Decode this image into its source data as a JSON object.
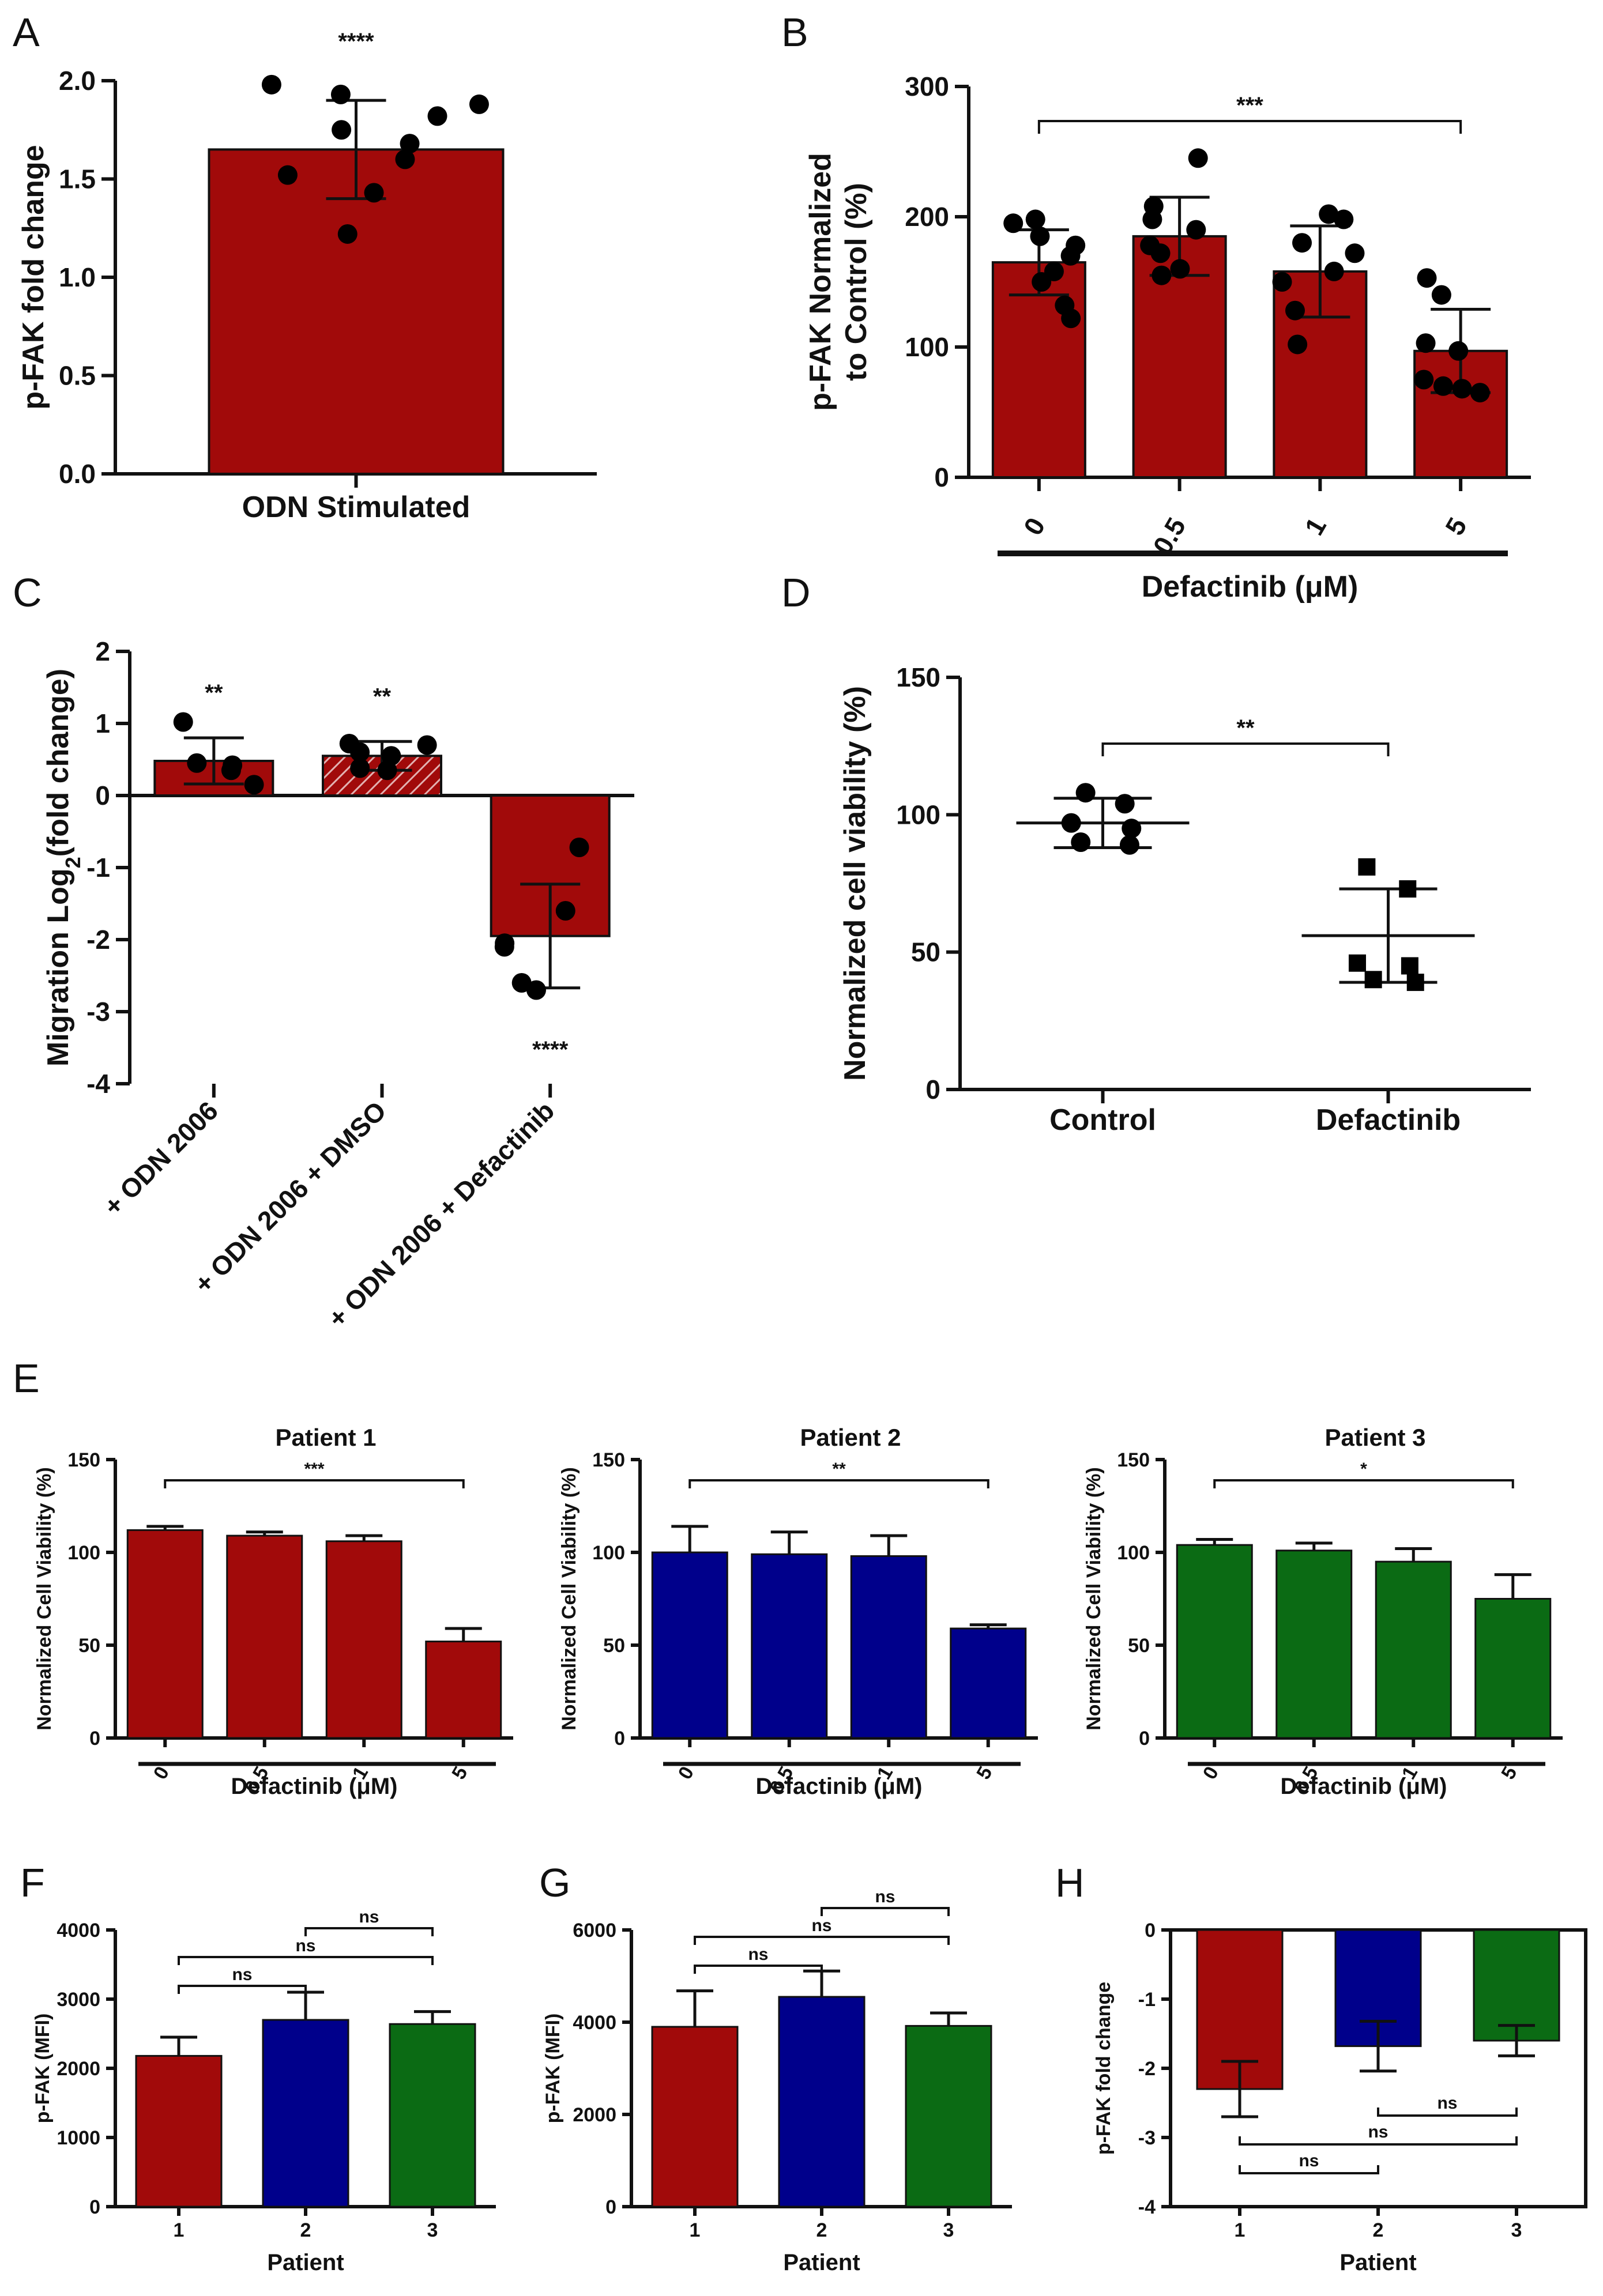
{
  "colors": {
    "red": "#a10a0a",
    "blue": "#00008b",
    "green": "#0b6b14",
    "hatch": "#d9a3a3"
  },
  "chart_data": [
    {
      "panel": "A",
      "type": "bar",
      "categories": [
        "ODN Stimulated"
      ],
      "values": [
        1.65
      ],
      "error": [
        0.25
      ],
      "points": [
        [
          1.98,
          1.93,
          1.88,
          1.82,
          1.75,
          1.68,
          1.6,
          1.52,
          1.43,
          1.22
        ]
      ],
      "ylabel": "p-FAK fold change",
      "xlabel": "",
      "ylim": [
        0,
        2.0
      ],
      "yticks": [
        0.0,
        0.5,
        1.0,
        1.5,
        2.0
      ],
      "ytick_labels": [
        "0.0",
        "0.5",
        "1.0",
        "1.5",
        "2.0"
      ],
      "sig": "****"
    },
    {
      "panel": "B",
      "type": "bar",
      "categories": [
        "0",
        "0.5",
        "1",
        "5"
      ],
      "values": [
        165,
        185,
        158,
        97
      ],
      "error": [
        25,
        30,
        35,
        32
      ],
      "points": [
        [
          198,
          195,
          185,
          178,
          170,
          158,
          150,
          132,
          122
        ],
        [
          245,
          208,
          198,
          190,
          178,
          172,
          160,
          155
        ],
        [
          202,
          198,
          180,
          172,
          158,
          150,
          128,
          102
        ],
        [
          153,
          140,
          103,
          97,
          75,
          70,
          68,
          65
        ]
      ],
      "ylabel": "p-FAK Normalized to Control (%)",
      "ylabel_lines": [
        "p-FAK Normalized",
        "to Control (%)"
      ],
      "xlabel": "Defactinib (μM)",
      "ylim": [
        0,
        300
      ],
      "yticks": [
        0,
        100,
        200,
        300
      ],
      "ytick_labels": [
        "0",
        "100",
        "200",
        "300"
      ],
      "brackets": [
        {
          "from": 0,
          "to": 3,
          "label": "***"
        }
      ]
    },
    {
      "panel": "C",
      "type": "bar",
      "categories": [
        "+ ODN 2006",
        "+ ODN 2006 + DMSO",
        "+ ODN 2006 + Defactinib"
      ],
      "values": [
        0.48,
        0.55,
        -1.95
      ],
      "error": [
        0.32,
        0.2,
        0.72
      ],
      "hatched": [
        false,
        true,
        false
      ],
      "points": [
        [
          1.02,
          0.45,
          0.42,
          0.35,
          0.15
        ],
        [
          0.72,
          0.7,
          0.6,
          0.55,
          0.38,
          0.35
        ],
        [
          -0.72,
          -1.6,
          -2.05,
          -2.1,
          -2.6,
          -2.7
        ]
      ],
      "ylabel": "Migration Log2(fold change)",
      "ylabel_parts": [
        "Migration Log",
        "2",
        "(fold change)"
      ],
      "ylim": [
        -4,
        2
      ],
      "yticks": [
        -4,
        -3,
        -2,
        -1,
        0,
        1,
        2
      ],
      "ytick_labels": [
        "-4",
        "-3",
        "-2",
        "-1",
        "0",
        "1",
        "2"
      ],
      "sig_labels": [
        "**",
        "**",
        "****"
      ]
    },
    {
      "panel": "D",
      "type": "scatter",
      "categories": [
        "Control",
        "Defactinib"
      ],
      "means": [
        97,
        56
      ],
      "error": [
        9,
        17
      ],
      "points": [
        [
          108,
          104,
          97,
          95,
          90,
          89
        ],
        [
          81,
          73,
          46,
          45,
          40,
          39
        ]
      ],
      "markers": [
        "circle",
        "square"
      ],
      "ylabel": "Normalized cell viability (%)",
      "ylim": [
        0,
        150
      ],
      "yticks": [
        0,
        50,
        100,
        150
      ],
      "ytick_labels": [
        "0",
        "50",
        "100",
        "150"
      ],
      "brackets": [
        {
          "from": 0,
          "to": 1,
          "label": "**"
        }
      ]
    },
    {
      "panel": "E1",
      "type": "bar",
      "title": "Patient 1",
      "color": "red",
      "categories": [
        "0",
        "0.5",
        "1",
        "5"
      ],
      "values": [
        112,
        109,
        106,
        52
      ],
      "error": [
        2,
        2,
        3,
        7
      ],
      "ylabel": "Normalized Cell Viability (%)",
      "xlabel": "Defactinib (μM)",
      "ylim": [
        0,
        150
      ],
      "yticks": [
        0,
        50,
        100,
        150
      ],
      "ytick_labels": [
        "0",
        "50",
        "100",
        "150"
      ],
      "brackets": [
        {
          "from": 0,
          "to": 3,
          "label": "***"
        }
      ]
    },
    {
      "panel": "E2",
      "type": "bar",
      "title": "Patient 2",
      "color": "blue",
      "categories": [
        "0",
        "0.5",
        "1",
        "5"
      ],
      "values": [
        100,
        99,
        98,
        59
      ],
      "error": [
        14,
        12,
        11,
        2
      ],
      "ylabel": "Normalized Cell Viability (%)",
      "xlabel": "Defactinib (μM)",
      "ylim": [
        0,
        150
      ],
      "yticks": [
        0,
        50,
        100,
        150
      ],
      "ytick_labels": [
        "0",
        "50",
        "100",
        "150"
      ],
      "brackets": [
        {
          "from": 0,
          "to": 3,
          "label": "**"
        }
      ]
    },
    {
      "panel": "E3",
      "type": "bar",
      "title": "Patient 3",
      "color": "green",
      "categories": [
        "0",
        "0.5",
        "1",
        "5"
      ],
      "values": [
        104,
        101,
        95,
        75
      ],
      "error": [
        3,
        4,
        7,
        13
      ],
      "ylabel": "Normalized Cell Viability (%)",
      "xlabel": "Defactinib (μM)",
      "ylim": [
        0,
        150
      ],
      "yticks": [
        0,
        50,
        100,
        150
      ],
      "ytick_labels": [
        "0",
        "50",
        "100",
        "150"
      ],
      "brackets": [
        {
          "from": 0,
          "to": 3,
          "label": "*"
        }
      ]
    },
    {
      "panel": "F",
      "type": "bar",
      "categories": [
        "1",
        "2",
        "3"
      ],
      "bar_colors": [
        "red",
        "blue",
        "green"
      ],
      "values": [
        2180,
        2700,
        2640
      ],
      "error": [
        270,
        400,
        180
      ],
      "ylabel": "p-FAK (MFI)",
      "xlabel": "Patient",
      "ylim": [
        0,
        4000
      ],
      "yticks": [
        0,
        1000,
        2000,
        3000,
        4000
      ],
      "ytick_labels": [
        "0",
        "1000",
        "2000",
        "3000",
        "4000"
      ],
      "brackets": [
        {
          "from": 0,
          "to": 1,
          "label": "ns"
        },
        {
          "from": 0,
          "to": 2,
          "label": "ns"
        },
        {
          "from": 1,
          "to": 2,
          "label": "ns"
        }
      ]
    },
    {
      "panel": "G",
      "type": "bar",
      "categories": [
        "1",
        "2",
        "3"
      ],
      "bar_colors": [
        "red",
        "blue",
        "green"
      ],
      "values": [
        3900,
        4550,
        3920
      ],
      "error": [
        780,
        560,
        280
      ],
      "ylabel": "p-FAK (MFI)",
      "xlabel": "Patient",
      "ylim": [
        0,
        6000
      ],
      "yticks": [
        0,
        2000,
        4000,
        6000
      ],
      "ytick_labels": [
        "0",
        "2000",
        "4000",
        "6000"
      ],
      "brackets": [
        {
          "from": 0,
          "to": 1,
          "label": "ns"
        },
        {
          "from": 0,
          "to": 2,
          "label": "ns"
        },
        {
          "from": 1,
          "to": 2,
          "label": "ns"
        }
      ]
    },
    {
      "panel": "H",
      "type": "bar",
      "categories": [
        "1",
        "2",
        "3"
      ],
      "bar_colors": [
        "red",
        "blue",
        "green"
      ],
      "values": [
        -2.3,
        -1.68,
        -1.6
      ],
      "error": [
        0.4,
        0.36,
        0.22
      ],
      "ylabel": "p-FAK fold change",
      "xlabel": "Patient",
      "ylim": [
        -4,
        0
      ],
      "yticks": [
        -4,
        -3,
        -2,
        -1,
        0
      ],
      "ytick_labels": [
        "-4",
        "-3",
        "-2",
        "-1",
        "0"
      ],
      "brackets": [
        {
          "from": 0,
          "to": 1,
          "label": "ns"
        },
        {
          "from": 0,
          "to": 2,
          "label": "ns"
        },
        {
          "from": 1,
          "to": 2,
          "label": "ns"
        }
      ]
    }
  ]
}
